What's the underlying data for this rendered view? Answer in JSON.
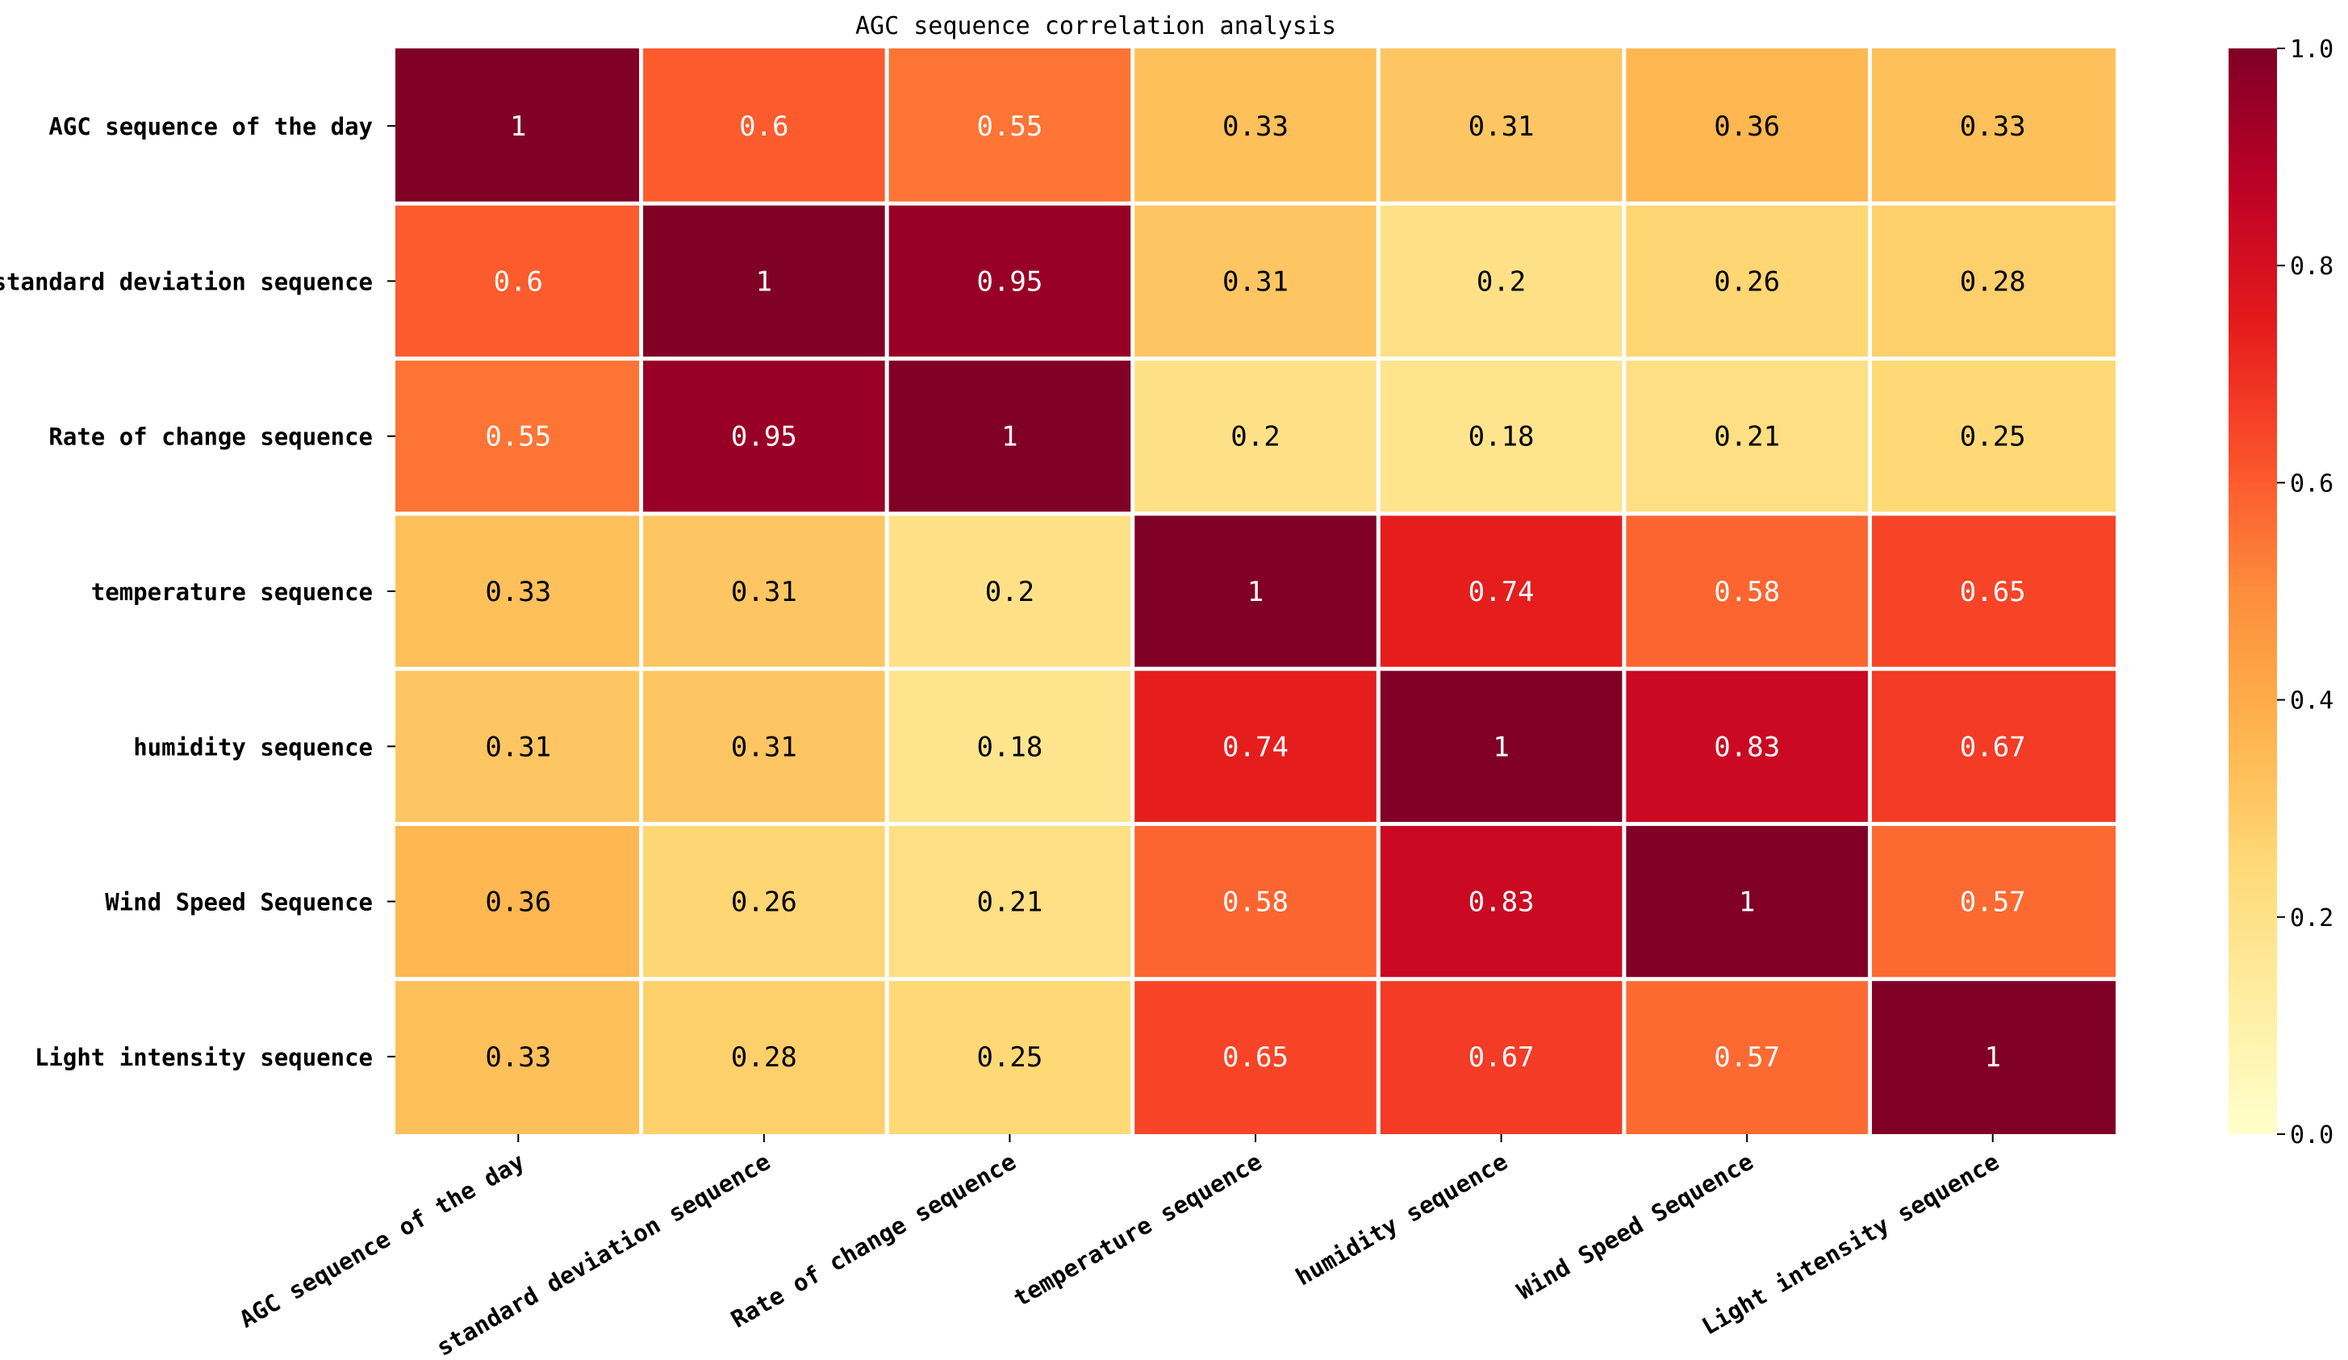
{
  "chart_data": {
    "type": "heatmap",
    "title": "AGC sequence correlation analysis",
    "row_labels": [
      "AGC sequence of the day",
      "standard deviation sequence",
      "Rate of change sequence",
      "temperature sequence",
      "humidity sequence",
      "Wind Speed Sequence",
      "Light intensity sequence"
    ],
    "col_labels": [
      "AGC sequence of the day",
      "standard deviation sequence",
      "Rate of change sequence",
      "temperature sequence",
      "humidity sequence",
      "Wind Speed Sequence",
      "Light intensity sequence"
    ],
    "values": [
      [
        1,
        0.6,
        0.55,
        0.33,
        0.31,
        0.36,
        0.33
      ],
      [
        0.6,
        1,
        0.95,
        0.31,
        0.2,
        0.26,
        0.28
      ],
      [
        0.55,
        0.95,
        1,
        0.2,
        0.18,
        0.21,
        0.25
      ],
      [
        0.33,
        0.31,
        0.2,
        1,
        0.74,
        0.58,
        0.65
      ],
      [
        0.31,
        0.31,
        0.18,
        0.74,
        1,
        0.83,
        0.67
      ],
      [
        0.36,
        0.26,
        0.21,
        0.58,
        0.83,
        1,
        0.57
      ],
      [
        0.33,
        0.28,
        0.25,
        0.65,
        0.67,
        0.57,
        1
      ]
    ],
    "annotations": [
      [
        "1",
        "0.6",
        "0.55",
        "0.33",
        "0.31",
        "0.36",
        "0.33"
      ],
      [
        "0.6",
        "1",
        "0.95",
        "0.31",
        "0.2",
        "0.26",
        "0.28"
      ],
      [
        "0.55",
        "0.95",
        "1",
        "0.2",
        "0.18",
        "0.21",
        "0.25"
      ],
      [
        "0.33",
        "0.31",
        "0.2",
        "1",
        "0.74",
        "0.58",
        "0.65"
      ],
      [
        "0.31",
        "0.31",
        "0.18",
        "0.74",
        "1",
        "0.83",
        "0.67"
      ],
      [
        "0.36",
        "0.26",
        "0.21",
        "0.58",
        "0.83",
        "1",
        "0.57"
      ],
      [
        "0.33",
        "0.28",
        "0.25",
        "0.65",
        "0.67",
        "0.57",
        "1"
      ]
    ],
    "colorbar": {
      "min": 0,
      "max": 1,
      "ticks": [
        0,
        0.2,
        0.4,
        0.6,
        0.8,
        1
      ],
      "tick_labels": [
        "0.0",
        "0.2",
        "0.4",
        "0.6",
        "0.8",
        "1.0"
      ],
      "colormap": "YlOrRd"
    },
    "legend": "colorbar right"
  }
}
